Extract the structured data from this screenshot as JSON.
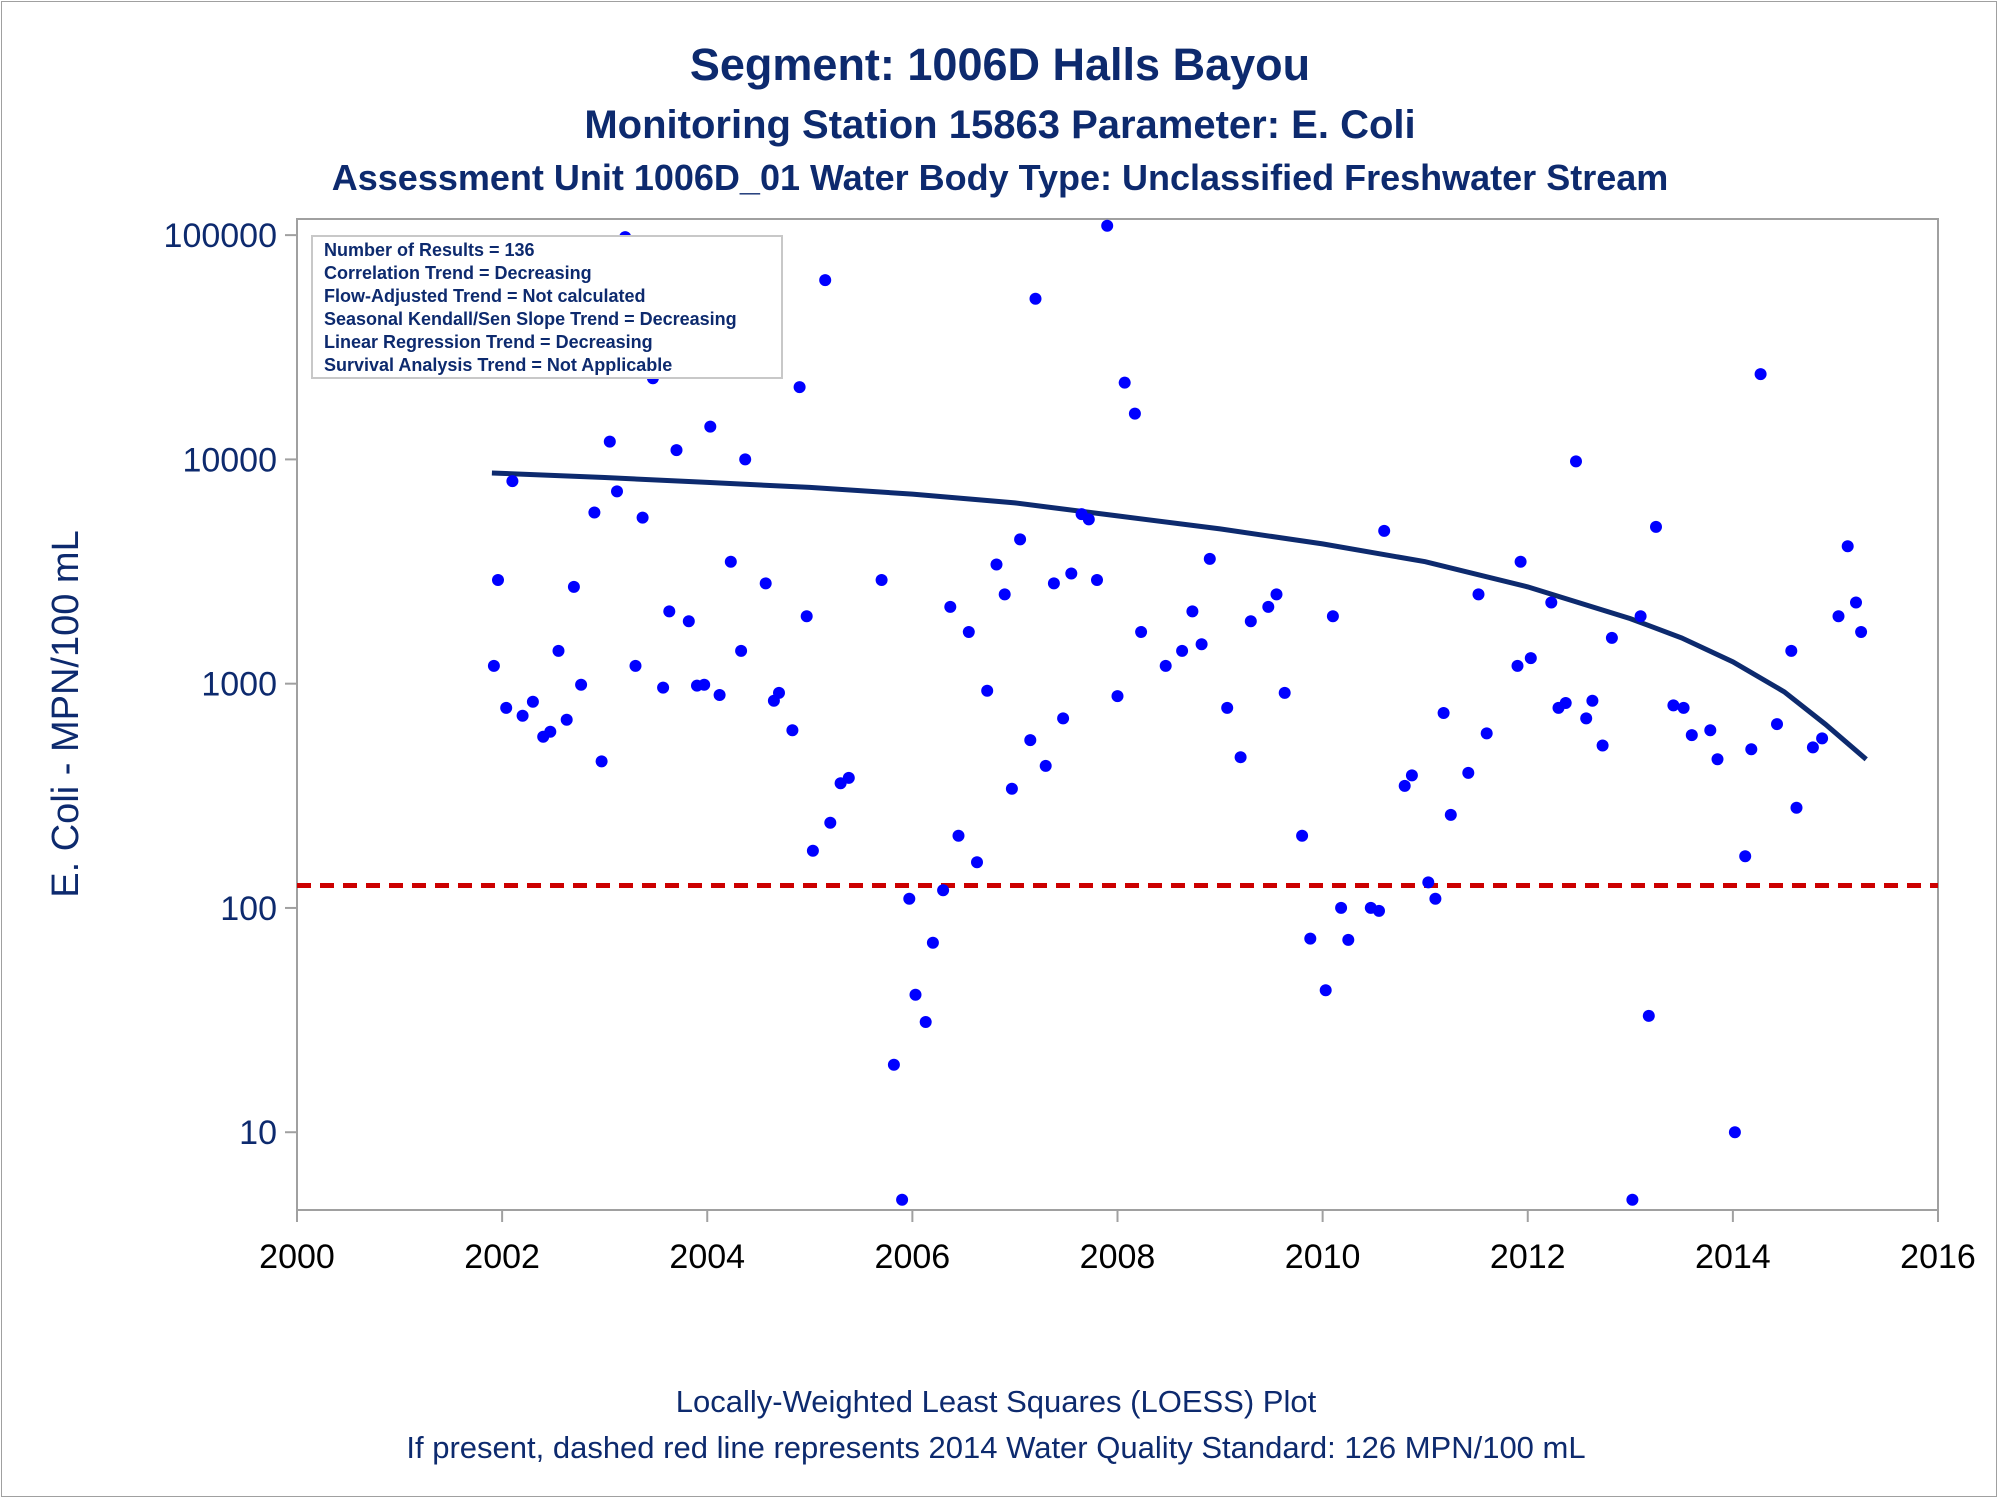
{
  "chart_data": {
    "type": "scatter",
    "title": "Segment: 1006D  Halls Bayou",
    "subtitle": "Monitoring Station 15863 Parameter: E. Coli",
    "subtitle2": "Assessment Unit 1006D_01   Water Body Type: Unclassified Freshwater Stream",
    "xlabel": "",
    "ylabel": "E. Coli - MPN/100 mL",
    "xlim": [
      2000,
      2016
    ],
    "ylim": [
      4.5,
      118000
    ],
    "y_scale": "log",
    "x_ticks": [
      2000,
      2002,
      2004,
      2006,
      2008,
      2010,
      2012,
      2014,
      2016
    ],
    "y_ticks": [
      10,
      100,
      1000,
      10000,
      100000
    ],
    "y_tick_labels": [
      "10",
      "100",
      "1000",
      "10000",
      "100000"
    ],
    "grid": false,
    "legend_position": "top-left",
    "inset_lines": [
      "Number of Results = 136",
      "Correlation Trend = Decreasing",
      "Flow-Adjusted Trend = Not calculated",
      "Seasonal Kendall/Sen Slope Trend = Decreasing",
      "Linear Regression Trend = Decreasing",
      "Survival Analysis Trend = Not Applicable"
    ],
    "footnote1": "Locally-Weighted Least Squares (LOESS) Plot",
    "footnote2": "If present, dashed red line represents 2014 Water Quality Standard: 126 MPN/100 mL",
    "standard_value": 126,
    "colors": {
      "points": "#0000ff",
      "loess": "#0d2a6e",
      "standard": "#cc0000",
      "text": "#0d2a6e",
      "axis": "#a0a0a0"
    },
    "loess": {
      "x": [
        2001.9,
        2003,
        2004,
        2005,
        2006,
        2007,
        2008,
        2009,
        2010,
        2011,
        2012,
        2013,
        2013.5,
        2014,
        2014.5,
        2014.9,
        2015.3
      ],
      "y": [
        8700,
        8300,
        7900,
        7500,
        7000,
        6400,
        5600,
        4900,
        4200,
        3500,
        2700,
        1950,
        1600,
        1250,
        920,
        660,
        460
      ]
    },
    "points": {
      "x": [
        2001.92,
        2001.96,
        2002.04,
        2002.1,
        2002.2,
        2002.3,
        2002.4,
        2002.47,
        2002.55,
        2002.63,
        2002.7,
        2002.77,
        2002.9,
        2002.97,
        2003.05,
        2003.12,
        2003.2,
        2003.3,
        2003.37,
        2003.47,
        2003.57,
        2003.63,
        2003.7,
        2003.82,
        2003.9,
        2003.97,
        2004.03,
        2004.12,
        2004.23,
        2004.33,
        2004.37,
        2004.47,
        2004.57,
        2004.65,
        2004.7,
        2004.83,
        2004.9,
        2004.97,
        2005.03,
        2005.15,
        2005.2,
        2005.3,
        2005.38,
        2005.7,
        2005.82,
        2005.9,
        2005.97,
        2006.03,
        2006.13,
        2006.2,
        2006.3,
        2006.37,
        2006.45,
        2006.55,
        2006.63,
        2006.73,
        2006.82,
        2006.9,
        2006.97,
        2007.05,
        2007.15,
        2007.2,
        2007.3,
        2007.38,
        2007.47,
        2007.55,
        2007.65,
        2007.72,
        2007.8,
        2007.9,
        2008.0,
        2008.07,
        2008.17,
        2008.23,
        2008.47,
        2008.63,
        2008.73,
        2008.82,
        2008.9,
        2009.07,
        2009.2,
        2009.3,
        2009.47,
        2009.55,
        2009.63,
        2009.8,
        2009.88,
        2010.03,
        2010.1,
        2010.18,
        2010.25,
        2010.47,
        2010.55,
        2010.6,
        2010.8,
        2010.87,
        2011.03,
        2011.1,
        2011.18,
        2011.25,
        2011.42,
        2011.52,
        2011.6,
        2011.9,
        2011.93,
        2012.03,
        2012.23,
        2012.3,
        2012.37,
        2012.47,
        2012.57,
        2012.63,
        2012.73,
        2012.82,
        2013.02,
        2013.1,
        2013.18,
        2013.25,
        2013.42,
        2013.52,
        2013.6,
        2013.78,
        2013.85,
        2014.02,
        2014.12,
        2014.18,
        2014.27,
        2014.43,
        2014.57,
        2014.62,
        2014.78,
        2014.87,
        2015.03,
        2015.12,
        2015.2,
        2015.25
      ],
      "y": [
        1200,
        2900,
        780,
        8000,
        720,
        830,
        580,
        610,
        1400,
        690,
        2700,
        990,
        5800,
        450,
        12000,
        7200,
        98000,
        1200,
        5500,
        23000,
        960,
        2100,
        11000,
        1900,
        980,
        990,
        14000,
        890,
        3500,
        1400,
        10000,
        65000,
        2800,
        840,
        910,
        620,
        21000,
        2000,
        180,
        63000,
        240,
        360,
        380,
        2900,
        20,
        5,
        110,
        41,
        31,
        70,
        120,
        2200,
        210,
        1700,
        160,
        930,
        3400,
        2500,
        340,
        4400,
        560,
        52000,
        430,
        2800,
        700,
        3100,
        5700,
        5400,
        2900,
        110000,
        880,
        22000,
        16000,
        1700,
        1200,
        1400,
        2100,
        1500,
        3600,
        780,
        470,
        1900,
        2200,
        2500,
        910,
        210,
        73,
        43,
        2000,
        100,
        72,
        100,
        97,
        4800,
        350,
        390,
        130,
        110,
        740,
        260,
        400,
        2500,
        600,
        1200,
        3500,
        1300,
        2300,
        780,
        820,
        9800,
        700,
        840,
        530,
        1600,
        5,
        2000,
        33,
        5000,
        800,
        780,
        590,
        620,
        460,
        10,
        170,
        510,
        24000,
        660,
        1400,
        280,
        520,
        570,
        2000,
        4100,
        2300,
        1700
      ]
    }
  }
}
